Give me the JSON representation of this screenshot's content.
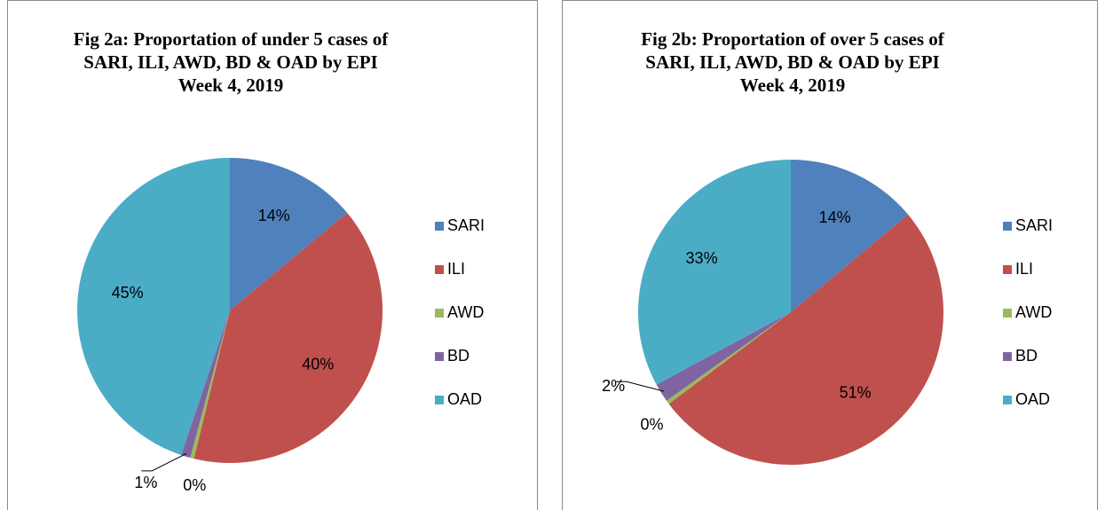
{
  "chart_data": [
    {
      "type": "pie",
      "title": [
        "Fig 2a: Proportation of under 5 cases of",
        "SARI, ILI, AWD, BD & OAD by EPI",
        "Week 4, 2019"
      ],
      "categories": [
        "SARI",
        "ILI",
        "AWD",
        "BD",
        "OAD"
      ],
      "values": [
        14,
        40,
        0.4,
        1,
        45
      ],
      "value_labels": [
        "14%",
        "40%",
        "0%",
        "1%",
        "45%"
      ],
      "colors": [
        "#4f81bd",
        "#c0504d",
        "#9bbb59",
        "#8064a2",
        "#4bacc6"
      ],
      "legend": "right"
    },
    {
      "type": "pie",
      "title": [
        "Fig 2b: Proportation of over 5 cases of",
        "SARI, ILI, AWD, BD & OAD by EPI",
        "Week 4, 2019"
      ],
      "categories": [
        "SARI",
        "ILI",
        "AWD",
        "BD",
        "OAD"
      ],
      "values": [
        14,
        51,
        0.4,
        2,
        33
      ],
      "value_labels": [
        "14%",
        "51%",
        "0%",
        "2%",
        "33%"
      ],
      "colors": [
        "#4f81bd",
        "#c0504d",
        "#9bbb59",
        "#8064a2",
        "#4bacc6"
      ],
      "legend": "right"
    }
  ]
}
